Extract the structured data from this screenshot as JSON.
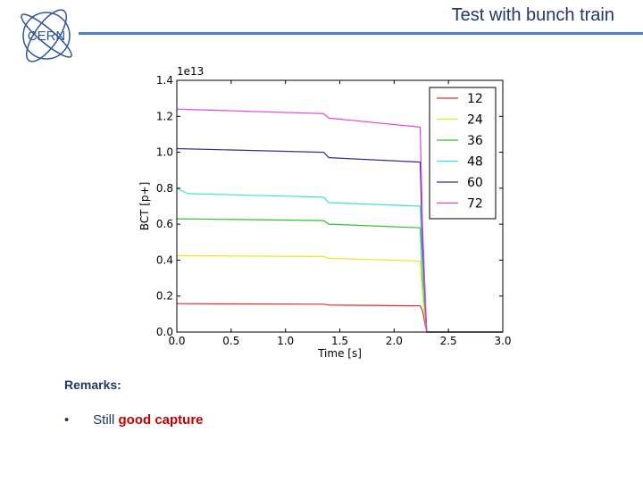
{
  "header": {
    "title": "Test with bunch train",
    "logo_text": "CERN",
    "accent_color": "#4f81bd"
  },
  "remarks": {
    "title": "Remarks:",
    "items": [
      {
        "bullet": "•",
        "text": "Still ",
        "emphasis": "good capture"
      }
    ]
  },
  "chart_data": {
    "type": "line",
    "title": "",
    "xlabel": "Time [s]",
    "ylabel": "BCT [p+]",
    "y_multiplier_label": "1e13",
    "xlim": [
      0.0,
      3.0
    ],
    "ylim": [
      0.0,
      1.4
    ],
    "x_ticks": [
      0.0,
      0.5,
      1.0,
      1.5,
      2.0,
      2.5,
      3.0
    ],
    "x_tick_labels": [
      "0.0",
      "0.5",
      "1.0",
      "1.5",
      "2.0",
      "2.5",
      "3.0"
    ],
    "y_ticks": [
      0.0,
      0.2,
      0.4,
      0.6,
      0.8,
      1.0,
      1.2,
      1.4
    ],
    "y_tick_labels": [
      "0.0",
      "0.2",
      "0.4",
      "0.6",
      "0.8",
      "1.0",
      "1.2",
      "1.4"
    ],
    "grid": false,
    "legend_position": "top-right",
    "series": [
      {
        "name": "12",
        "color": "#e03030",
        "x": [
          0.0,
          1.35,
          1.4,
          2.24,
          2.26,
          2.3,
          3.0
        ],
        "y": [
          0.158,
          0.155,
          0.15,
          0.146,
          0.12,
          0.0,
          0.0
        ]
      },
      {
        "name": "24",
        "color": "#e8e820",
        "x": [
          0.0,
          1.35,
          1.4,
          2.24,
          2.26,
          2.3,
          3.0
        ],
        "y": [
          0.425,
          0.42,
          0.41,
          0.395,
          0.2,
          0.0,
          0.0
        ]
      },
      {
        "name": "36",
        "color": "#30c030",
        "x": [
          0.0,
          1.35,
          1.4,
          2.24,
          2.26,
          2.3,
          3.0
        ],
        "y": [
          0.63,
          0.62,
          0.6,
          0.58,
          0.3,
          0.0,
          0.0
        ]
      },
      {
        "name": "48",
        "color": "#40e0e0",
        "x": [
          0.0,
          0.1,
          1.35,
          1.4,
          2.24,
          2.26,
          2.3,
          3.0
        ],
        "y": [
          0.8,
          0.77,
          0.75,
          0.72,
          0.7,
          0.35,
          0.0,
          0.0
        ]
      },
      {
        "name": "60",
        "color": "#303090",
        "x": [
          0.0,
          1.35,
          1.4,
          2.24,
          2.26,
          2.3,
          3.0
        ],
        "y": [
          1.02,
          1.0,
          0.97,
          0.945,
          0.5,
          0.0,
          0.0
        ]
      },
      {
        "name": "72",
        "color": "#e040e0",
        "x": [
          0.0,
          1.35,
          1.4,
          2.24,
          2.26,
          2.3,
          3.0
        ],
        "y": [
          1.24,
          1.215,
          1.19,
          1.14,
          0.6,
          0.0,
          0.0
        ]
      }
    ]
  }
}
